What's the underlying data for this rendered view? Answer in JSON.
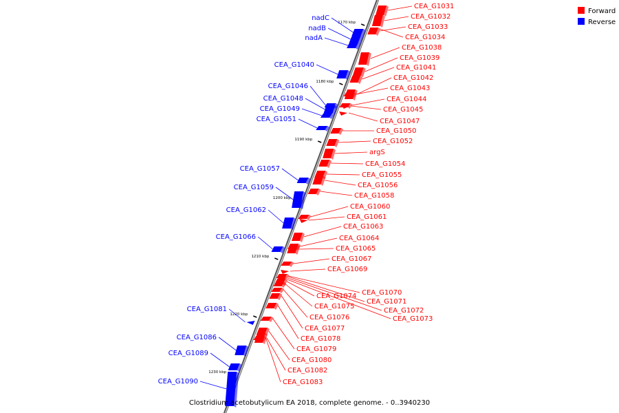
{
  "caption": "Clostridium acetobutylicum EA 2018, complete genome. - 0..3940230",
  "legend": [
    {
      "label": "Forward",
      "color": "#ff0000"
    },
    {
      "label": "Reverse",
      "color": "#0000ff"
    }
  ],
  "ticks": [
    "1170 kbp",
    "1180 kbp",
    "1190 kbp",
    "1200 kbp",
    "1210 kbp",
    "1220 kbp",
    "1230 kbp"
  ],
  "forward_genes": [
    "CEA_G1031",
    "CEA_G1032",
    "CEA_G1033",
    "CEA_G1034",
    "CEA_G1038",
    "CEA_G1039",
    "CEA_G1041",
    "CEA_G1042",
    "CEA_G1043",
    "CEA_G1044",
    "CEA_G1045",
    "CEA_G1047",
    "CEA_G1050",
    "CEA_G1052",
    "argS",
    "CEA_G1054",
    "CEA_G1055",
    "CEA_G1056",
    "CEA_G1058",
    "CEA_G1060",
    "CEA_G1061",
    "CEA_G1063",
    "CEA_G1064",
    "CEA_G1065",
    "CEA_G1067",
    "CEA_G1069",
    "CEA_G1070",
    "CEA_G1071",
    "CEA_G1072",
    "CEA_G1073",
    "CEA_G1074",
    "CEA_G1075",
    "CEA_G1076",
    "CEA_G1077",
    "CEA_G1078",
    "CEA_G1079",
    "CEA_G1080",
    "CEA_G1082",
    "CEA_G1083"
  ],
  "reverse_genes": [
    "nadC",
    "nadB",
    "nadA",
    "CEA_G1040",
    "CEA_G1046",
    "CEA_G1048",
    "CEA_G1049",
    "CEA_G1051",
    "CEA_G1057",
    "CEA_G1059",
    "CEA_G1062",
    "CEA_G1066",
    "CEA_G1081",
    "CEA_G1086",
    "CEA_G1089",
    "CEA_G1090"
  ]
}
